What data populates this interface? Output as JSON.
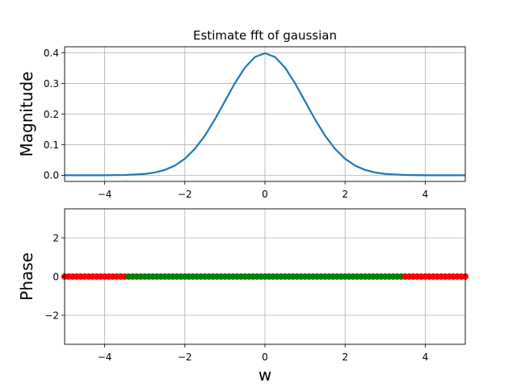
{
  "chart_data": [
    {
      "type": "line",
      "title": "Estimate fft of gaussian",
      "xlabel": "",
      "ylabel": "Magnitude",
      "xlim": [
        -5,
        5
      ],
      "ylim": [
        -0.02,
        0.42
      ],
      "xticks": [
        -4,
        -2,
        0,
        2,
        4
      ],
      "xtick_labels": [
        "−4",
        "−2",
        "0",
        "2",
        "4"
      ],
      "yticks": [
        0.0,
        0.1,
        0.2,
        0.3,
        0.4
      ],
      "ytick_labels": [
        "0.0",
        "0.1",
        "0.2",
        "0.3",
        "0.4"
      ],
      "grid": true,
      "line_color": "#1f77b4",
      "series": [
        {
          "x": [
            -5.0,
            -4.5,
            -4.0,
            -3.5,
            -3.0,
            -2.75,
            -2.5,
            -2.25,
            -2.0,
            -1.75,
            -1.5,
            -1.25,
            -1.0,
            -0.75,
            -0.5,
            -0.25,
            0.0,
            0.25,
            0.5,
            0.75,
            1.0,
            1.25,
            1.5,
            1.75,
            2.0,
            2.25,
            2.5,
            2.75,
            3.0,
            3.5,
            4.0,
            4.5,
            5.0
          ],
          "y": [
            0.0,
            0.0,
            0.0001,
            0.0009,
            0.0044,
            0.0091,
            0.0175,
            0.0317,
            0.054,
            0.0863,
            0.1295,
            0.1826,
            0.242,
            0.3011,
            0.3521,
            0.3867,
            0.3989,
            0.3867,
            0.3521,
            0.3011,
            0.242,
            0.1826,
            0.1295,
            0.0863,
            0.054,
            0.0317,
            0.0175,
            0.0091,
            0.0044,
            0.0009,
            0.0001,
            0.0,
            0.0
          ]
        }
      ]
    },
    {
      "type": "scatter",
      "title": "",
      "xlabel": "w",
      "ylabel": "Phase",
      "xlim": [
        -5,
        5
      ],
      "ylim": [
        -3.5,
        3.5
      ],
      "xticks": [
        -4,
        -2,
        0,
        2,
        4
      ],
      "xtick_labels": [
        "−4",
        "−2",
        "0",
        "2",
        "4"
      ],
      "yticks": [
        -2,
        0,
        2
      ],
      "ytick_labels": [
        "−2",
        "0",
        "2"
      ],
      "grid": true,
      "series": [
        {
          "color": "#ff0000",
          "x_range": [
            -5.0,
            -3.5
          ],
          "step": 0.1,
          "y": 0
        },
        {
          "color": "#008000",
          "x_range": [
            -3.4,
            3.4
          ],
          "step": 0.1,
          "y": 0
        },
        {
          "color": "#ff0000",
          "x_range": [
            3.5,
            5.0
          ],
          "step": 0.1,
          "y": 0
        }
      ]
    }
  ]
}
